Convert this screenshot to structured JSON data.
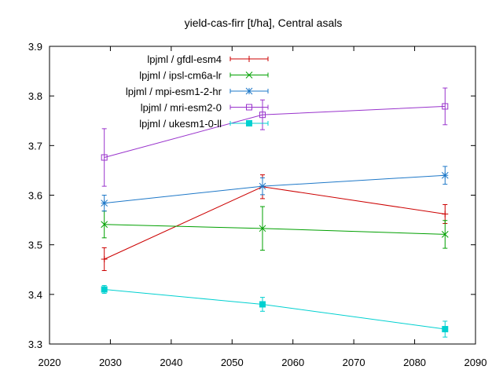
{
  "chart_data": {
    "type": "line",
    "title": "yield-cas-firr [t/ha], Central asals",
    "xlabel": "",
    "ylabel": "",
    "xlim": [
      2020,
      2090
    ],
    "ylim": [
      3.3,
      3.9
    ],
    "x_ticks": [
      "2020",
      "2030",
      "2040",
      "2050",
      "2060",
      "2070",
      "2080",
      "2090"
    ],
    "y_ticks": [
      "3.3",
      "3.4",
      "3.5",
      "3.6",
      "3.7",
      "3.8",
      "3.9"
    ],
    "grid": false,
    "legend_position": "top-left",
    "series": [
      {
        "name": "lpjml / gfdl-esm4",
        "color": "#cc0000",
        "marker": "plus",
        "points": [
          {
            "x": 2029,
            "y": 3.471,
            "err": 0.023
          },
          {
            "x": 2055,
            "y": 3.617,
            "err": 0.024
          },
          {
            "x": 2085,
            "y": 3.562,
            "err": 0.019
          }
        ]
      },
      {
        "name": "lpjml / ipsl-cm6a-lr",
        "color": "#00a000",
        "marker": "cross",
        "points": [
          {
            "x": 2029,
            "y": 3.541,
            "err": 0.027
          },
          {
            "x": 2055,
            "y": 3.533,
            "err": 0.044
          },
          {
            "x": 2085,
            "y": 3.521,
            "err": 0.028
          }
        ]
      },
      {
        "name": "lpjml / mpi-esm1-2-hr",
        "color": "#1e78c8",
        "marker": "star",
        "points": [
          {
            "x": 2029,
            "y": 3.584,
            "err": 0.016
          },
          {
            "x": 2055,
            "y": 3.618,
            "err": 0.017
          },
          {
            "x": 2085,
            "y": 3.64,
            "err": 0.018
          }
        ]
      },
      {
        "name": "lpjml / mri-esm2-0",
        "color": "#9933cc",
        "marker": "open-square",
        "points": [
          {
            "x": 2029,
            "y": 3.676,
            "err": 0.058
          },
          {
            "x": 2055,
            "y": 3.762,
            "err": 0.03
          },
          {
            "x": 2085,
            "y": 3.779,
            "err": 0.037
          }
        ]
      },
      {
        "name": "lpjml / ukesm1-0-ll",
        "color": "#00d0d0",
        "marker": "filled-square",
        "points": [
          {
            "x": 2029,
            "y": 3.41,
            "err": 0.008
          },
          {
            "x": 2055,
            "y": 3.38,
            "err": 0.014
          },
          {
            "x": 2085,
            "y": 3.33,
            "err": 0.016
          }
        ]
      }
    ]
  }
}
